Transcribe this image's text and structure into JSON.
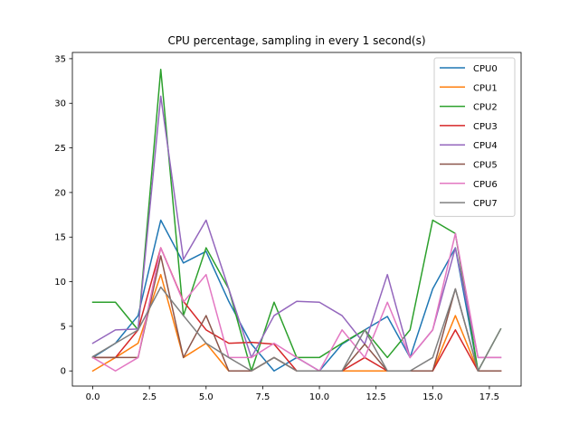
{
  "chart_data": {
    "type": "line",
    "title": "CPU percentage, sampling in every 1 second(s)",
    "xlabel": "",
    "ylabel": "",
    "xlim": [
      -0.9,
      18.9
    ],
    "ylim": [
      -1.7,
      35.7
    ],
    "x_ticks": [
      0.0,
      2.5,
      5.0,
      7.5,
      10.0,
      12.5,
      15.0,
      17.5
    ],
    "x_tick_labels": [
      "0.0",
      "2.5",
      "5.0",
      "7.5",
      "10.0",
      "12.5",
      "15.0",
      "17.5"
    ],
    "y_ticks": [
      0,
      5,
      10,
      15,
      20,
      25,
      30,
      35
    ],
    "y_tick_labels": [
      "0",
      "5",
      "10",
      "15",
      "20",
      "25",
      "30",
      "35"
    ],
    "grid": false,
    "legend_position": "top-right",
    "x": [
      0,
      1,
      2,
      3,
      4,
      5,
      6,
      7,
      8,
      9,
      10,
      11,
      12,
      13,
      14,
      15,
      16,
      17,
      18
    ],
    "series": [
      {
        "name": "CPU0",
        "color": "#1f77b4",
        "values": [
          1.5,
          3.1,
          6.2,
          16.9,
          12.1,
          13.4,
          7.8,
          3.0,
          0.0,
          1.5,
          0.0,
          3.0,
          4.6,
          6.1,
          1.5,
          9.2,
          13.8,
          0.0,
          0.0
        ]
      },
      {
        "name": "CPU1",
        "color": "#ff7f0e",
        "values": [
          0.0,
          1.5,
          3.1,
          10.8,
          1.5,
          3.1,
          0.0,
          0.0,
          1.5,
          0.0,
          0.0,
          0.0,
          0.0,
          0.0,
          0.0,
          0.0,
          6.2,
          0.0,
          0.0
        ]
      },
      {
        "name": "CPU2",
        "color": "#2ca02c",
        "values": [
          7.7,
          7.7,
          4.6,
          33.8,
          6.2,
          13.8,
          9.2,
          0.0,
          7.7,
          1.5,
          1.5,
          3.1,
          4.6,
          1.5,
          4.6,
          16.9,
          15.4,
          0.0,
          4.7
        ]
      },
      {
        "name": "CPU3",
        "color": "#d62728",
        "values": [
          1.5,
          1.5,
          4.6,
          13.8,
          7.8,
          4.6,
          3.1,
          3.2,
          3.0,
          0.0,
          0.0,
          0.0,
          1.5,
          0.0,
          0.0,
          0.0,
          4.6,
          0.0,
          0.0
        ]
      },
      {
        "name": "CPU4",
        "color": "#9467bd",
        "values": [
          3.1,
          4.6,
          4.7,
          30.8,
          12.5,
          16.9,
          9.2,
          1.5,
          6.2,
          7.8,
          7.7,
          6.2,
          3.0,
          10.8,
          1.5,
          4.6,
          13.8,
          1.5,
          1.5
        ]
      },
      {
        "name": "CPU5",
        "color": "#8c564b",
        "values": [
          1.5,
          1.5,
          1.5,
          12.9,
          1.5,
          6.2,
          0.0,
          0.0,
          1.5,
          0.0,
          0.0,
          0.0,
          3.0,
          0.0,
          0.0,
          0.0,
          9.2,
          0.0,
          0.0
        ]
      },
      {
        "name": "CPU6",
        "color": "#e377c2",
        "values": [
          1.5,
          0.0,
          1.5,
          13.8,
          7.7,
          10.8,
          1.5,
          1.5,
          3.1,
          1.5,
          0.0,
          4.6,
          1.5,
          7.7,
          1.5,
          4.6,
          15.4,
          1.5,
          1.5
        ]
      },
      {
        "name": "CPU7",
        "color": "#7f7f7f",
        "values": [
          1.6,
          3.1,
          4.6,
          9.4,
          6.2,
          3.1,
          1.5,
          0.0,
          1.5,
          0.0,
          0.0,
          0.0,
          4.6,
          0.0,
          0.0,
          1.5,
          9.2,
          0.0,
          4.7
        ]
      }
    ]
  }
}
